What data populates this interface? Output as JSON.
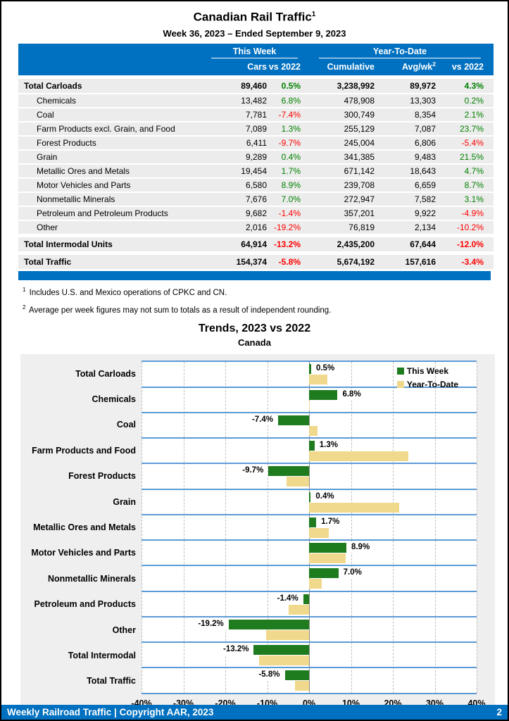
{
  "page": {
    "title": "Canadian Rail Traffic",
    "title_superscript": "1",
    "subtitle": "Week 36, 2023 – Ended September 9, 2023",
    "footer": {
      "left": "Weekly Railroad Traffic | Copyright AAR, 2023",
      "page_number": "2"
    }
  },
  "colors": {
    "header_blue": "#0070C0",
    "band_line_blue": "#5B9BD5",
    "positive_green": "#008000",
    "negative_red": "#FF0000",
    "row_gray": "#ECECEC",
    "chart_bg_gray": "#EFEFEF"
  },
  "table": {
    "group_headers": {
      "this_week": "This Week",
      "ytd": "Year-To-Date"
    },
    "columns": {
      "cars": "Cars",
      "week_vs": "vs 2022",
      "cumulative": "Cumulative",
      "avg_wk": "Avg/wk",
      "avg_wk_superscript": "2",
      "ytd_vs": "vs 2022"
    },
    "rows": [
      {
        "label": "Total Carloads",
        "bold": true,
        "indent": false,
        "cars": "89,460",
        "week_vs": "0.5%",
        "week_vs_color": "green",
        "cumulative": "3,238,992",
        "avg": "89,972",
        "ytd_vs": "4.3%",
        "ytd_vs_color": "green"
      },
      {
        "label": "Chemicals",
        "bold": false,
        "indent": true,
        "cars": "13,482",
        "week_vs": "6.8%",
        "week_vs_color": "green",
        "cumulative": "478,908",
        "avg": "13,303",
        "ytd_vs": "0.2%",
        "ytd_vs_color": "green"
      },
      {
        "label": "Coal",
        "bold": false,
        "indent": true,
        "cars": "7,781",
        "week_vs": "-7.4%",
        "week_vs_color": "red",
        "cumulative": "300,749",
        "avg": "8,354",
        "ytd_vs": "2.1%",
        "ytd_vs_color": "green"
      },
      {
        "label": "Farm Products excl. Grain, and Food",
        "bold": false,
        "indent": true,
        "cars": "7,089",
        "week_vs": "1.3%",
        "week_vs_color": "green",
        "cumulative": "255,129",
        "avg": "7,087",
        "ytd_vs": "23.7%",
        "ytd_vs_color": "green"
      },
      {
        "label": "Forest Products",
        "bold": false,
        "indent": true,
        "cars": "6,411",
        "week_vs": "-9.7%",
        "week_vs_color": "red",
        "cumulative": "245,004",
        "avg": "6,806",
        "ytd_vs": "-5.4%",
        "ytd_vs_color": "red"
      },
      {
        "label": "Grain",
        "bold": false,
        "indent": true,
        "cars": "9,289",
        "week_vs": "0.4%",
        "week_vs_color": "green",
        "cumulative": "341,385",
        "avg": "9,483",
        "ytd_vs": "21.5%",
        "ytd_vs_color": "green"
      },
      {
        "label": "Metallic Ores and Metals",
        "bold": false,
        "indent": true,
        "cars": "19,454",
        "week_vs": "1.7%",
        "week_vs_color": "green",
        "cumulative": "671,142",
        "avg": "18,643",
        "ytd_vs": "4.7%",
        "ytd_vs_color": "green"
      },
      {
        "label": "Motor Vehicles and Parts",
        "bold": false,
        "indent": true,
        "cars": "6,580",
        "week_vs": "8.9%",
        "week_vs_color": "green",
        "cumulative": "239,708",
        "avg": "6,659",
        "ytd_vs": "8.7%",
        "ytd_vs_color": "green"
      },
      {
        "label": "Nonmetallic Minerals",
        "bold": false,
        "indent": true,
        "cars": "7,676",
        "week_vs": "7.0%",
        "week_vs_color": "green",
        "cumulative": "272,947",
        "avg": "7,582",
        "ytd_vs": "3.1%",
        "ytd_vs_color": "green"
      },
      {
        "label": "Petroleum and Petroleum Products",
        "bold": false,
        "indent": true,
        "cars": "9,682",
        "week_vs": "-1.4%",
        "week_vs_color": "red",
        "cumulative": "357,201",
        "avg": "9,922",
        "ytd_vs": "-4.9%",
        "ytd_vs_color": "red"
      },
      {
        "label": "Other",
        "bold": false,
        "indent": true,
        "cars": "2,016",
        "week_vs": "-19.2%",
        "week_vs_color": "red",
        "cumulative": "76,819",
        "avg": "2,134",
        "ytd_vs": "-10.2%",
        "ytd_vs_color": "red"
      },
      {
        "label": "Total Intermodal Units",
        "bold": true,
        "indent": false,
        "cars": "64,914",
        "week_vs": "-13.2%",
        "week_vs_color": "red",
        "cumulative": "2,435,200",
        "avg": "67,644",
        "ytd_vs": "-12.0%",
        "ytd_vs_color": "red"
      },
      {
        "label": "Total Traffic",
        "bold": true,
        "indent": false,
        "cars": "154,374",
        "week_vs": "-5.8%",
        "week_vs_color": "red",
        "cumulative": "5,674,192",
        "avg": "157,616",
        "ytd_vs": "-3.4%",
        "ytd_vs_color": "red"
      }
    ]
  },
  "footnotes": [
    {
      "sup": "1",
      "text": "Includes U.S. and Mexico operations of CPKC and CN."
    },
    {
      "sup": "2",
      "text": "Average per week figures may not sum to totals as a result of independent rounding."
    }
  ],
  "chart_data": {
    "type": "bar",
    "orientation": "horizontal",
    "title": "Trends, 2023 vs 2022",
    "subtitle": "Canada",
    "xlabel": "",
    "ylabel": "",
    "xlim": [
      -40,
      40
    ],
    "x_ticks": [
      "-40%",
      "-30%",
      "-20%",
      "-10%",
      "0%",
      "10%",
      "20%",
      "30%",
      "40%"
    ],
    "grid": "vertical-dashed",
    "legend_position": "top-right",
    "categories": [
      "Total Carloads",
      "Chemicals",
      "Coal",
      "Farm Products and Food",
      "Forest Products",
      "Grain",
      "Metallic Ores and Metals",
      "Motor Vehicles and Parts",
      "Nonmetallic Minerals",
      "Petroleum and Products",
      "Other",
      "Total Intermodal",
      "Total Traffic"
    ],
    "series": [
      {
        "name": "This Week",
        "color": "#1E7B1E",
        "values": [
          0.5,
          6.8,
          -7.4,
          1.3,
          -9.7,
          0.4,
          1.7,
          8.9,
          7.0,
          -1.4,
          -19.2,
          -13.2,
          -5.8
        ],
        "labels": [
          "0.5%",
          "6.8%",
          "-7.4%",
          "1.3%",
          "-9.7%",
          "0.4%",
          "1.7%",
          "8.9%",
          "7.0%",
          "-1.4%",
          "-19.2%",
          "-13.2%",
          "-5.8%"
        ]
      },
      {
        "name": "Year-To-Date",
        "color": "#F0D98C",
        "values": [
          4.3,
          0.2,
          2.1,
          23.7,
          -5.4,
          21.5,
          4.7,
          8.7,
          3.1,
          -4.9,
          -10.2,
          -12.0,
          -3.4
        ]
      }
    ]
  }
}
